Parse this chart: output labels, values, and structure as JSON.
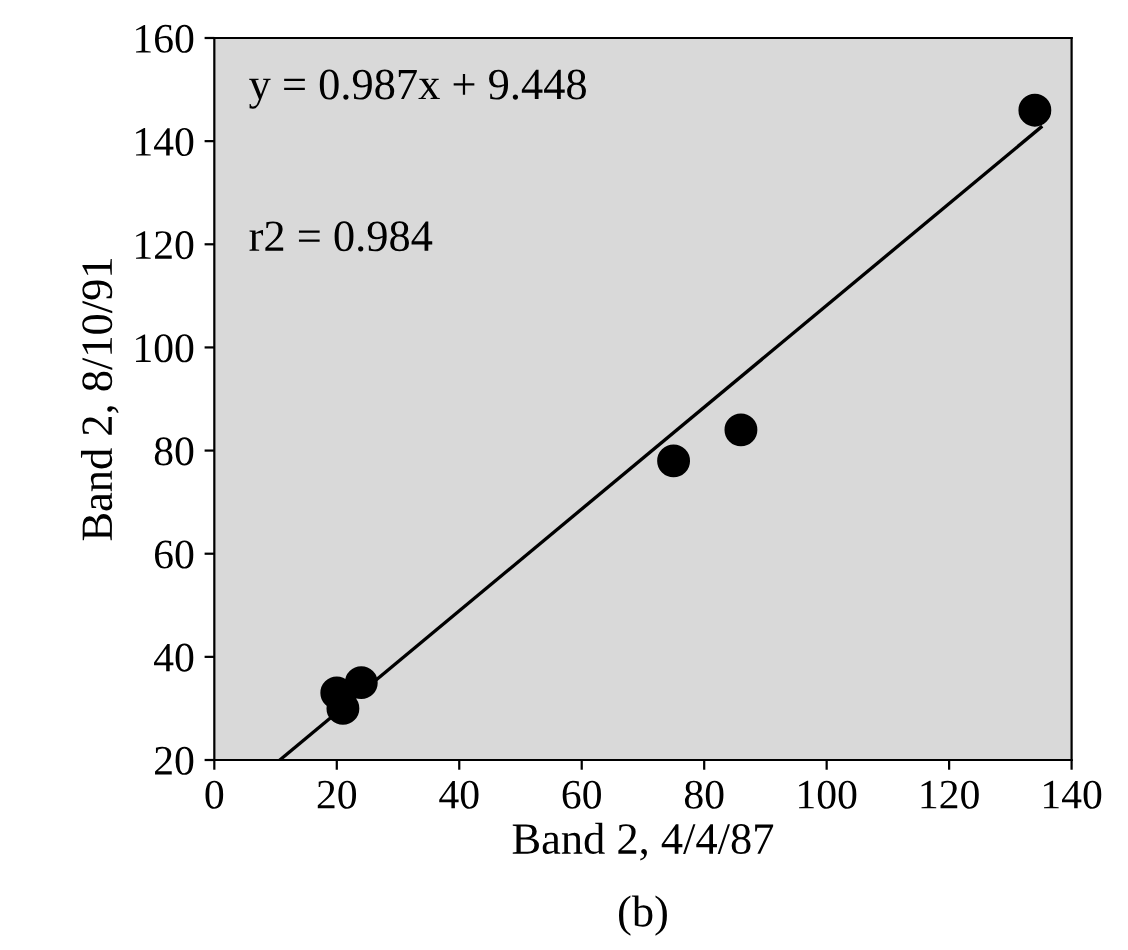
{
  "chart_data": {
    "type": "scatter",
    "xlabel": "Band 2, 4/4/87",
    "ylabel": "Band 2, 8/10/91",
    "x": [
      20,
      21,
      24,
      75,
      86,
      134
    ],
    "series": [
      {
        "color": "#000000",
        "marker": "circle",
        "values": [
          33,
          30,
          35,
          78,
          84,
          146
        ]
      },
      {
        "type": "line",
        "color": "#000000",
        "marker": "none",
        "x": [
          10.7,
          135
        ],
        "values": [
          20,
          142.7
        ]
      }
    ],
    "annotations": [
      "y = 0.987x + 9.448",
      "r2 = 0.984",
      "(b)"
    ],
    "xlim": [
      0,
      140
    ],
    "ylim": [
      20,
      160
    ],
    "xticks": [
      0,
      20,
      40,
      60,
      80,
      100,
      120,
      140
    ],
    "yticks": [
      20,
      40,
      60,
      80,
      100,
      120,
      140,
      160
    ],
    "grid": false,
    "legend": false
  }
}
